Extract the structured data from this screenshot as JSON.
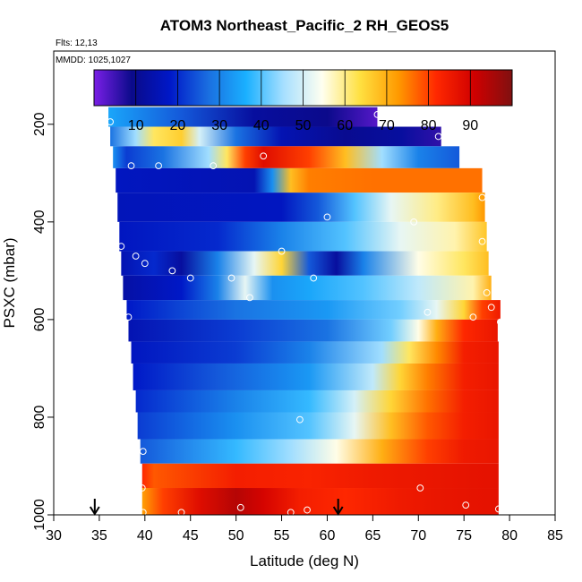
{
  "chart_data": {
    "type": "heatmap",
    "title": "ATOM3 Northeast_Pacific_2 RH_GEOS5",
    "info_lines": [
      "Flts: 12,13",
      "MMDD: 1025,1027"
    ],
    "xlabel": "Latitude (deg N)",
    "ylabel": "PSXC (mbar)",
    "xlim": [
      30,
      85
    ],
    "ylim": [
      1000,
      50
    ],
    "x_ticks": [
      30,
      35,
      40,
      45,
      50,
      55,
      60,
      65,
      70,
      75,
      80,
      85
    ],
    "y_ticks": [
      200,
      400,
      600,
      800,
      1000
    ],
    "colorbar": {
      "min": 0,
      "max": 100,
      "ticks": [
        10,
        20,
        30,
        40,
        50,
        60,
        70,
        80,
        90
      ],
      "colors": [
        "#7a1fe6",
        "#0a0a8a",
        "#0018c8",
        "#1a6ee0",
        "#1ab0ff",
        "#a8e0ff",
        "#fffff0",
        "#ffe040",
        "#ff9a00",
        "#ff2800",
        "#d00000",
        "#801010"
      ]
    },
    "arrows_latitude": [
      34.5,
      61.2
    ],
    "legend_marker": "open circles = sample locations",
    "bands": [
      {
        "p_top": 165,
        "p_bot": 205,
        "lat_start": 36,
        "lat_end": 65.5,
        "stops": [
          [
            36,
            35
          ],
          [
            44,
            25
          ],
          [
            52,
            12
          ],
          [
            60,
            9
          ],
          [
            65.5,
            3
          ]
        ]
      },
      {
        "p_top": 205,
        "p_bot": 245,
        "lat_start": 36.2,
        "lat_end": 72.5,
        "stops": [
          [
            36.2,
            28
          ],
          [
            39,
            45
          ],
          [
            41,
            62
          ],
          [
            44,
            66
          ],
          [
            46,
            50
          ],
          [
            50,
            28
          ],
          [
            55,
            15
          ],
          [
            62,
            10
          ],
          [
            68,
            12
          ],
          [
            72.5,
            6
          ]
        ]
      },
      {
        "p_top": 245,
        "p_bot": 290,
        "lat_start": 36.5,
        "lat_end": 74.5,
        "stops": [
          [
            36.5,
            32
          ],
          [
            38,
            22
          ],
          [
            42,
            28
          ],
          [
            47,
            45
          ],
          [
            49,
            62
          ],
          [
            51,
            80
          ],
          [
            53,
            88
          ],
          [
            58,
            80
          ],
          [
            62,
            68
          ],
          [
            66,
            45
          ],
          [
            70,
            30
          ],
          [
            74.5,
            25
          ]
        ]
      },
      {
        "p_top": 290,
        "p_bot": 340,
        "lat_start": 36.8,
        "lat_end": 77,
        "stops": [
          [
            36.8,
            17
          ],
          [
            52,
            15
          ],
          [
            54,
            32
          ],
          [
            56,
            68
          ],
          [
            58,
            75
          ],
          [
            65,
            76
          ],
          [
            77,
            76
          ]
        ]
      },
      {
        "p_top": 340,
        "p_bot": 400,
        "lat_start": 37,
        "lat_end": 77.3,
        "stops": [
          [
            37,
            16
          ],
          [
            55,
            17
          ],
          [
            59,
            25
          ],
          [
            63,
            40
          ],
          [
            67,
            52
          ],
          [
            72,
            60
          ],
          [
            76,
            68
          ],
          [
            77.3,
            73
          ]
        ]
      },
      {
        "p_top": 400,
        "p_bot": 460,
        "lat_start": 37.2,
        "lat_end": 77.5,
        "stops": [
          [
            37.2,
            17
          ],
          [
            48,
            20
          ],
          [
            55,
            30
          ],
          [
            62,
            40
          ],
          [
            68,
            52
          ],
          [
            74,
            58
          ],
          [
            77.5,
            67
          ]
        ]
      },
      {
        "p_top": 460,
        "p_bot": 510,
        "lat_start": 37.4,
        "lat_end": 77.7,
        "stops": [
          [
            37.4,
            15
          ],
          [
            41,
            20
          ],
          [
            44,
            12
          ],
          [
            48,
            30
          ],
          [
            52,
            52
          ],
          [
            55,
            65
          ],
          [
            58,
            25
          ],
          [
            61,
            12
          ],
          [
            64,
            30
          ],
          [
            70,
            55
          ],
          [
            75,
            62
          ],
          [
            77.7,
            68
          ]
        ]
      },
      {
        "p_top": 510,
        "p_bot": 560,
        "lat_start": 37.6,
        "lat_end": 78,
        "stops": [
          [
            37.6,
            13
          ],
          [
            44,
            18
          ],
          [
            48,
            30
          ],
          [
            51,
            52
          ],
          [
            54,
            32
          ],
          [
            58,
            35
          ],
          [
            64,
            40
          ],
          [
            70,
            48
          ],
          [
            76,
            58
          ],
          [
            78,
            70
          ]
        ]
      },
      {
        "p_top": 560,
        "p_bot": 600,
        "lat_start": 38,
        "lat_end": 79,
        "stops": [
          [
            38,
            18
          ],
          [
            50,
            28
          ],
          [
            60,
            33
          ],
          [
            68,
            42
          ],
          [
            72,
            52
          ],
          [
            75,
            65
          ],
          [
            77,
            80
          ],
          [
            79,
            85
          ]
        ]
      },
      {
        "p_top": 600,
        "p_bot": 645,
        "lat_start": 38.2,
        "lat_end": 78.7,
        "stops": [
          [
            38.2,
            15
          ],
          [
            50,
            22
          ],
          [
            60,
            28
          ],
          [
            67,
            42
          ],
          [
            70,
            55
          ],
          [
            72,
            70
          ],
          [
            75,
            82
          ],
          [
            78.7,
            86
          ]
        ]
      },
      {
        "p_top": 645,
        "p_bot": 690,
        "lat_start": 38.5,
        "lat_end": 78.8,
        "stops": [
          [
            38.5,
            17
          ],
          [
            50,
            22
          ],
          [
            58,
            30
          ],
          [
            66,
            45
          ],
          [
            69,
            62
          ],
          [
            72,
            74
          ],
          [
            75,
            84
          ],
          [
            78.8,
            86
          ]
        ]
      },
      {
        "p_top": 690,
        "p_bot": 745,
        "lat_start": 38.7,
        "lat_end": 78.8,
        "stops": [
          [
            38.7,
            18
          ],
          [
            48,
            25
          ],
          [
            58,
            33
          ],
          [
            65,
            48
          ],
          [
            68,
            65
          ],
          [
            71,
            75
          ],
          [
            75,
            84
          ],
          [
            78.8,
            86
          ]
        ]
      },
      {
        "p_top": 745,
        "p_bot": 790,
        "lat_start": 39,
        "lat_end": 78.8,
        "stops": [
          [
            39,
            20
          ],
          [
            50,
            30
          ],
          [
            58,
            38
          ],
          [
            63,
            50
          ],
          [
            67,
            65
          ],
          [
            71,
            76
          ],
          [
            75,
            84
          ],
          [
            78.8,
            86
          ]
        ]
      },
      {
        "p_top": 790,
        "p_bot": 845,
        "lat_start": 39.2,
        "lat_end": 78.8,
        "stops": [
          [
            39.2,
            22
          ],
          [
            50,
            32
          ],
          [
            58,
            40
          ],
          [
            63,
            52
          ],
          [
            67,
            68
          ],
          [
            71,
            78
          ],
          [
            75,
            84
          ],
          [
            78.8,
            86
          ]
        ]
      },
      {
        "p_top": 845,
        "p_bot": 895,
        "lat_start": 39.5,
        "lat_end": 78.8,
        "stops": [
          [
            39.5,
            25
          ],
          [
            50,
            38
          ],
          [
            56,
            45
          ],
          [
            61,
            55
          ],
          [
            66,
            70
          ],
          [
            71,
            80
          ],
          [
            75,
            85
          ],
          [
            78.8,
            86
          ]
        ]
      },
      {
        "p_top": 895,
        "p_bot": 945,
        "lat_start": 39.7,
        "lat_end": 78.8,
        "stops": [
          [
            39.7,
            82
          ],
          [
            41,
            78
          ],
          [
            50,
            84
          ],
          [
            58,
            83
          ],
          [
            65,
            85
          ],
          [
            72,
            86
          ],
          [
            78.8,
            87
          ]
        ]
      },
      {
        "p_top": 945,
        "p_bot": 1000,
        "lat_start": 39.7,
        "lat_end": 78.8,
        "stops": [
          [
            39.7,
            72
          ],
          [
            42,
            80
          ],
          [
            46,
            88
          ],
          [
            50,
            94
          ],
          [
            53,
            90
          ],
          [
            57,
            84
          ],
          [
            62,
            82
          ],
          [
            68,
            85
          ],
          [
            72,
            86
          ],
          [
            78.8,
            87
          ]
        ]
      }
    ],
    "samples": [
      {
        "lat": 36.2,
        "p": 195
      },
      {
        "lat": 65.5,
        "p": 180
      },
      {
        "lat": 72.2,
        "p": 225
      },
      {
        "lat": 38.5,
        "p": 285
      },
      {
        "lat": 41.5,
        "p": 285
      },
      {
        "lat": 47.5,
        "p": 285
      },
      {
        "lat": 53,
        "p": 265
      },
      {
        "lat": 77,
        "p": 350
      },
      {
        "lat": 60,
        "p": 390
      },
      {
        "lat": 69.5,
        "p": 400
      },
      {
        "lat": 77,
        "p": 440
      },
      {
        "lat": 37.4,
        "p": 450
      },
      {
        "lat": 39,
        "p": 470
      },
      {
        "lat": 40,
        "p": 485
      },
      {
        "lat": 55,
        "p": 460
      },
      {
        "lat": 43,
        "p": 500
      },
      {
        "lat": 45,
        "p": 515
      },
      {
        "lat": 49.5,
        "p": 515
      },
      {
        "lat": 58.5,
        "p": 515
      },
      {
        "lat": 51.5,
        "p": 555
      },
      {
        "lat": 77.5,
        "p": 545
      },
      {
        "lat": 38.2,
        "p": 595
      },
      {
        "lat": 71,
        "p": 585
      },
      {
        "lat": 76,
        "p": 595
      },
      {
        "lat": 78,
        "p": 575
      },
      {
        "lat": 79,
        "p": 605
      },
      {
        "lat": 57,
        "p": 805
      },
      {
        "lat": 39.8,
        "p": 870
      },
      {
        "lat": 39.7,
        "p": 945
      },
      {
        "lat": 70.2,
        "p": 945
      },
      {
        "lat": 39.8,
        "p": 995
      },
      {
        "lat": 44,
        "p": 995
      },
      {
        "lat": 50.5,
        "p": 985
      },
      {
        "lat": 56,
        "p": 995
      },
      {
        "lat": 57.8,
        "p": 990
      },
      {
        "lat": 75.2,
        "p": 980
      },
      {
        "lat": 78.8,
        "p": 988
      }
    ]
  }
}
